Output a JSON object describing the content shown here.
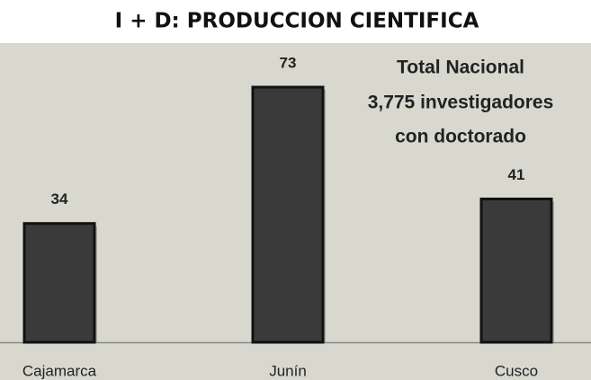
{
  "chart_data": {
    "type": "bar",
    "title": "I + D: PRODUCCION CIENTIFICA",
    "categories": [
      "Cajamarca",
      "Junín",
      "Cusco"
    ],
    "values": [
      34,
      73,
      41
    ],
    "color": "#3a3a3a",
    "annotation": [
      "Total Nacional",
      "3,775 investigadores",
      "con doctorado"
    ]
  }
}
